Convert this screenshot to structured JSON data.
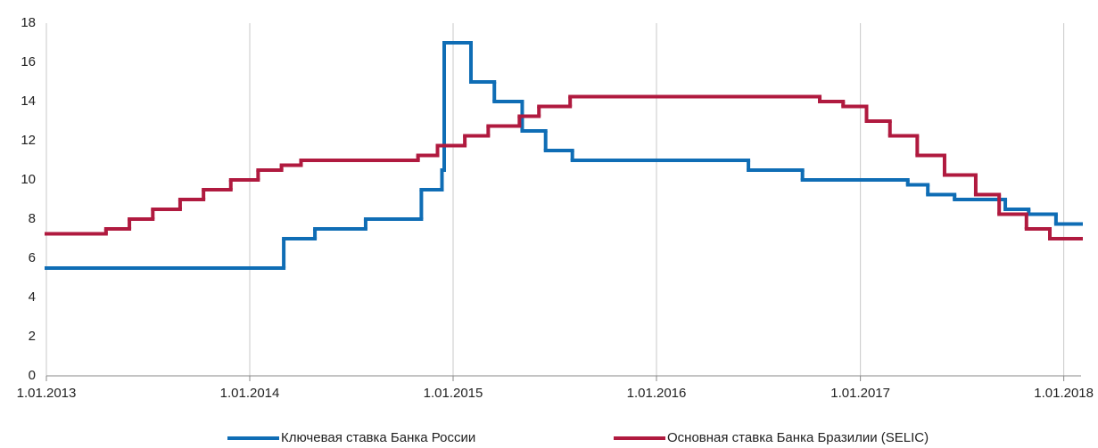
{
  "chart_data": {
    "type": "step",
    "xlim": [
      "2013-01-01",
      "2018-02-01"
    ],
    "xticks": [
      {
        "value": "2013-01-01",
        "label": "1.01.2013"
      },
      {
        "value": "2014-01-01",
        "label": "1.01.2014"
      },
      {
        "value": "2015-01-01",
        "label": "1.01.2015"
      },
      {
        "value": "2016-01-01",
        "label": "1.01.2016"
      },
      {
        "value": "2017-01-01",
        "label": "1.01.2017"
      },
      {
        "value": "2018-01-01",
        "label": "1.01.2018"
      }
    ],
    "ylim": [
      0,
      18
    ],
    "yticks": [
      0,
      2,
      4,
      6,
      8,
      10,
      12,
      14,
      16,
      18
    ],
    "grid": "x",
    "legend": "bottom",
    "series": [
      {
        "name": "Ключевая ставка Банка России",
        "color": "#0f6db5",
        "x": [
          "2013-01-01",
          "2014-03-03",
          "2014-04-28",
          "2014-07-28",
          "2014-11-05",
          "2014-12-12",
          "2014-12-16",
          "2015-02-02",
          "2015-03-16",
          "2015-05-05",
          "2015-06-16",
          "2015-08-03",
          "2016-06-14",
          "2016-09-19",
          "2017-03-27",
          "2017-05-02",
          "2017-06-19",
          "2017-09-18",
          "2017-10-30",
          "2017-12-18"
        ],
        "values": [
          5.5,
          7,
          7.5,
          8,
          9.5,
          10.5,
          17,
          15,
          14,
          12.5,
          11.5,
          11,
          10.5,
          10,
          9.75,
          9.25,
          9,
          8.5,
          8.25,
          7.75
        ]
      },
      {
        "name": "Основная ставка Банка Бразилии (SELIC)",
        "color": "#b01a3f",
        "x": [
          "2013-01-01",
          "2013-04-18",
          "2013-05-30",
          "2013-07-11",
          "2013-08-29",
          "2013-10-10",
          "2013-11-28",
          "2014-01-16",
          "2014-02-27",
          "2014-04-03",
          "2014-10-30",
          "2014-12-04",
          "2015-01-22",
          "2015-03-05",
          "2015-04-30",
          "2015-06-04",
          "2015-07-30",
          "2016-10-20",
          "2016-12-01",
          "2017-01-12",
          "2017-02-23",
          "2017-04-13",
          "2017-06-01",
          "2017-07-27",
          "2017-09-07",
          "2017-10-26",
          "2017-12-07"
        ],
        "values": [
          7.25,
          7.5,
          8,
          8.5,
          9,
          9.5,
          10,
          10.5,
          10.75,
          11,
          11.25,
          11.75,
          12.25,
          12.75,
          13.25,
          13.75,
          14.25,
          14,
          13.75,
          13,
          12.25,
          11.25,
          10.25,
          9.25,
          8.25,
          7.5,
          7
        ]
      }
    ]
  }
}
